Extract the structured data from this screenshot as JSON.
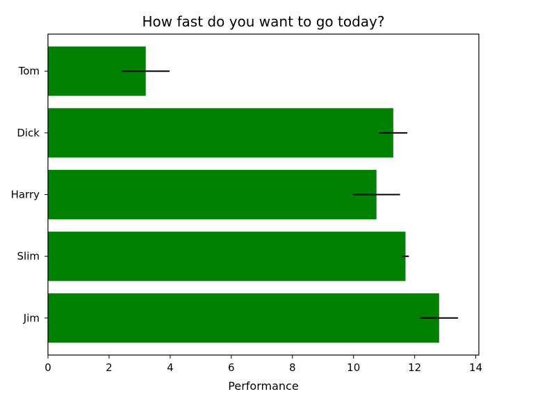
{
  "chart_data": {
    "type": "bar",
    "orientation": "horizontal",
    "title": "How fast do you want to go today?",
    "xlabel": "Performance",
    "ylabel": "",
    "categories": [
      "Tom",
      "Dick",
      "Harry",
      "Slim",
      "Jim"
    ],
    "values": [
      3.2,
      11.3,
      10.75,
      11.7,
      12.8
    ],
    "errors": [
      0.78,
      0.46,
      0.77,
      0.11,
      0.62
    ],
    "xlim": [
      0,
      14.1
    ],
    "xticks": [
      0,
      2,
      4,
      6,
      8,
      10,
      12,
      14
    ],
    "grid": false,
    "legend": "none",
    "bar_color": "#008000",
    "error_color": "#000000"
  }
}
